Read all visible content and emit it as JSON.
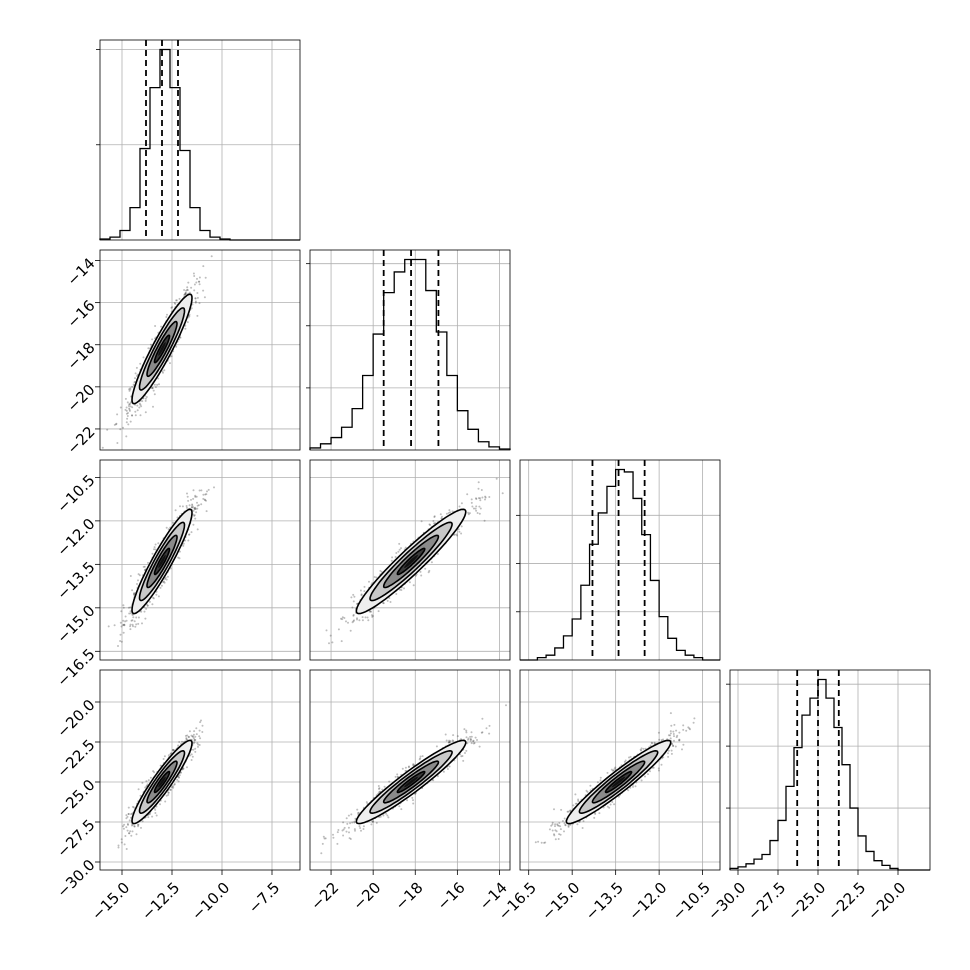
{
  "chart_data": {
    "type": "corner",
    "grid": true,
    "parameters": [
      {
        "index": 0,
        "range": [
          -16.1,
          -6.1
        ],
        "ticks": [
          -15.0,
          -12.5,
          -10.0,
          -7.5
        ],
        "tick_labels": [
          "−15.0",
          "−12.5",
          "−10.0",
          "−7.5"
        ],
        "quantiles": [
          -13.8,
          -13.0,
          -12.2
        ],
        "hist_edges": [
          -16.1,
          -15.6,
          -15.1,
          -14.6,
          -14.1,
          -13.6,
          -13.1,
          -12.6,
          -12.1,
          -11.6,
          -11.1,
          -10.6,
          -10.1,
          -9.6,
          -9.1,
          -8.6,
          -8.1,
          -7.6,
          -7.1,
          -6.6,
          -6.1
        ],
        "hist_counts": [
          0.5,
          1.5,
          5,
          17,
          48,
          80,
          100,
          80,
          47,
          17,
          5,
          1.5,
          0.5,
          0,
          0,
          0,
          0,
          0,
          0,
          0
        ],
        "hist_ticks": [
          50,
          100
        ]
      },
      {
        "index": 1,
        "range": [
          -23.0,
          -13.5
        ],
        "ticks": [
          -22,
          -20,
          -18,
          -16,
          -14
        ],
        "tick_labels": [
          "−22",
          "−20",
          "−18",
          "−16",
          "−14"
        ],
        "quantiles": [
          -19.5,
          -18.2,
          -16.9
        ],
        "hist_edges": [
          -23.0,
          -22.5,
          -22.0,
          -21.5,
          -21.0,
          -20.5,
          -20.0,
          -19.5,
          -19.0,
          -18.5,
          -18.0,
          -17.5,
          -17.0,
          -16.5,
          -16.0,
          -15.5,
          -15.0,
          -14.5,
          -14.0,
          -13.5
        ],
        "hist_counts": [
          1,
          3,
          6,
          11,
          20,
          36,
          56,
          76,
          86,
          92,
          92,
          77,
          57,
          36,
          19,
          10,
          4,
          1.5,
          0.5
        ],
        "hist_ticks": [
          30,
          60,
          90
        ]
      },
      {
        "index": 2,
        "range": [
          -16.8,
          -9.9
        ],
        "ticks": [
          -16.5,
          -15.0,
          -13.5,
          -12.0,
          -10.5
        ],
        "tick_labels": [
          "−16.5",
          "−15.0",
          "−13.5",
          "−12.0",
          "−10.5"
        ],
        "quantiles": [
          -14.3,
          -13.4,
          -12.5
        ],
        "hist_edges": [
          -16.8,
          -16.5,
          -16.2,
          -15.9,
          -15.6,
          -15.3,
          -15.0,
          -14.7,
          -14.4,
          -14.1,
          -13.8,
          -13.5,
          -13.2,
          -12.9,
          -12.6,
          -12.3,
          -12.0,
          -11.7,
          -11.4,
          -11.1,
          -10.8,
          -10.5,
          -10.2,
          -9.9
        ],
        "hist_counts": [
          0,
          0,
          1,
          2,
          5,
          10,
          17,
          31,
          48,
          61,
          72,
          79,
          78,
          67,
          52,
          33,
          18,
          9,
          4,
          2,
          1,
          0,
          0
        ],
        "hist_ticks": [
          20,
          40,
          60
        ]
      },
      {
        "index": 3,
        "range": [
          -30.5,
          -18.0
        ],
        "ticks": [
          -30.0,
          -27.5,
          -25.0,
          -22.5,
          -20.0
        ],
        "tick_labels": [
          "−30.0",
          "−27.5",
          "−25.0",
          "−22.5",
          "−20.0"
        ],
        "quantiles": [
          -26.3,
          -25.0,
          -23.7
        ],
        "hist_edges": [
          -30.5,
          -30.0,
          -29.5,
          -29.0,
          -28.5,
          -28.0,
          -27.5,
          -27.0,
          -26.5,
          -26.0,
          -25.5,
          -25.0,
          -24.5,
          -24.0,
          -23.5,
          -23.0,
          -22.5,
          -22.0,
          -21.5,
          -21.0,
          -20.5,
          -20.0,
          -19.5,
          -19.0,
          -18.5,
          -18.0
        ],
        "hist_counts": [
          1,
          2,
          4,
          7,
          10,
          19,
          32,
          54,
          79,
          100,
          111,
          123,
          111,
          92,
          68,
          40,
          22,
          12,
          6,
          3,
          1,
          0,
          0,
          0,
          0
        ],
        "hist_ticks": [
          40,
          80,
          120
        ]
      }
    ],
    "pairs": [
      {
        "x": 0,
        "y": 1,
        "mean": [
          -13.0,
          -18.2
        ],
        "correlation": 0.93,
        "sigma": [
          0.75,
          1.3
        ]
      },
      {
        "x": 0,
        "y": 2,
        "mean": [
          -13.0,
          -13.4
        ],
        "correlation": 0.93,
        "sigma": [
          0.75,
          0.9
        ]
      },
      {
        "x": 1,
        "y": 2,
        "mean": [
          -18.2,
          -13.4
        ],
        "correlation": 0.95,
        "sigma": [
          1.3,
          0.9
        ]
      },
      {
        "x": 0,
        "y": 3,
        "mean": [
          -13.0,
          -25.0
        ],
        "correlation": 0.93,
        "sigma": [
          0.75,
          1.3
        ]
      },
      {
        "x": 1,
        "y": 3,
        "mean": [
          -18.2,
          -25.0
        ],
        "correlation": 0.95,
        "sigma": [
          1.3,
          1.3
        ]
      },
      {
        "x": 2,
        "y": 3,
        "mean": [
          -13.4,
          -25.0
        ],
        "correlation": 0.95,
        "sigma": [
          0.9,
          1.3
        ]
      }
    ],
    "contour_levels_sigma": [
      0.5,
      1.0,
      1.5,
      2.0
    ]
  }
}
